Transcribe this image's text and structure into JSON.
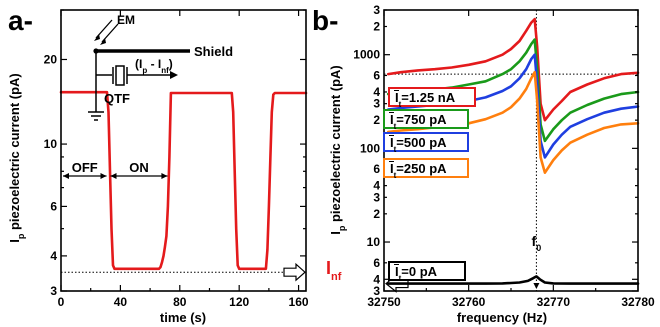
{
  "chart_data": [
    {
      "type": "line",
      "panel_label": "a-",
      "xlabel": "time (s)",
      "ylabel_main": "I",
      "ylabel_sub": "p",
      "ylabel_rest": " piezoelectric current (pA)",
      "xlim": [
        0,
        165
      ],
      "ylim": [
        3.0,
        30
      ],
      "y_scale": "log",
      "x_ticks": [
        0,
        40,
        80,
        120,
        160
      ],
      "x_tick_labels": [
        "0",
        "40",
        "80",
        "120",
        "160"
      ],
      "y_ticks": [
        3,
        4,
        6,
        10,
        20
      ],
      "y_tick_labels": [
        "3",
        "4",
        "6",
        "10",
        "20"
      ],
      "y_minor_ticks": [
        5,
        7,
        8,
        9,
        30
      ],
      "y_minor_tick_labels": [
        "",
        "",
        "",
        "",
        ""
      ],
      "reference_line_y": 3.5,
      "inset": {
        "em_label": "EM",
        "shield_label": "Shield",
        "current_label": "(I",
        "current_sub_p": "p",
        "current_mid": " - I",
        "current_sub_nf": "nf",
        "current_end": ")",
        "qtf_label": "QTF"
      },
      "regions": [
        {
          "label": "OFF",
          "x_start": 0,
          "x_end": 32
        },
        {
          "label": "ON",
          "x_start": 32,
          "x_end": 73
        }
      ],
      "series": [
        {
          "color": "#e41a1c",
          "x": [
            0,
            31,
            32,
            33,
            34,
            35,
            36,
            66,
            67,
            68,
            69,
            70,
            71,
            72,
            73,
            74,
            115,
            116,
            117,
            118,
            119,
            120,
            138,
            139,
            140,
            141,
            142,
            143,
            144,
            165
          ],
          "y": [
            15.3,
            15.3,
            13,
            8,
            5,
            3.7,
            3.6,
            3.6,
            3.65,
            3.8,
            4.0,
            4.3,
            4.7,
            6,
            9,
            15.2,
            15.2,
            13,
            8,
            5,
            3.7,
            3.6,
            3.6,
            4.2,
            6,
            9,
            13,
            15.0,
            15.2,
            15.2
          ]
        }
      ]
    },
    {
      "type": "line",
      "panel_label": "b-",
      "xlabel": "frequency (Hz)",
      "ylabel_main": "I",
      "ylabel_sub": "p",
      "ylabel_rest": " piezoelectric current (pA)",
      "xlim": [
        32750,
        32780
      ],
      "ylim": [
        3.0,
        3000
      ],
      "y_scale": "log",
      "x_ticks": [
        32750,
        32760,
        32770,
        32780
      ],
      "x_tick_labels": [
        "32750",
        "32760",
        "32770",
        "32780"
      ],
      "y_ticks": [
        3,
        4,
        10,
        100,
        1000
      ],
      "y_tick_labels": [
        "3",
        "4",
        "10",
        "100",
        "1000"
      ],
      "y_minor_ticks": [
        6,
        20,
        30,
        40,
        60,
        200,
        300,
        400,
        600,
        2000,
        3000
      ],
      "y_minor_tick_labels": [
        "6",
        "2",
        "3",
        "4",
        "6",
        "2",
        "3",
        "4",
        "6",
        "2",
        "3"
      ],
      "resonance_label": "f",
      "resonance_sub": "0",
      "resonance_x": 32768,
      "reference_line_y": 620,
      "inf_label_main": "I",
      "inf_label_sub": "nf",
      "inf_color": "#e41a1c",
      "series": [
        {
          "name": "Ĩ=1.25 nA",
          "legend_prefix": "I",
          "legend_sub": "t",
          "legend_value": "=1.25 nA",
          "color": "#e41a1c",
          "x": [
            32750.5,
            32752,
            32754,
            32756,
            32758,
            32760,
            32762,
            32764,
            32765,
            32766,
            32766.8,
            32767.4,
            32767.8,
            32768.1,
            32768.5,
            32769,
            32770,
            32771,
            32772,
            32774,
            32776,
            32778,
            32780
          ],
          "y": [
            620,
            650,
            680,
            700,
            730,
            780,
            850,
            1000,
            1150,
            1400,
            1800,
            2200,
            2400,
            1200,
            300,
            200,
            260,
            320,
            400,
            480,
            560,
            620,
            640
          ]
        },
        {
          "name": "Ĩ=750 pA",
          "legend_prefix": "I",
          "legend_sub": "t",
          "legend_value": "=750 pA",
          "color": "#1a9a1a",
          "x": [
            32750.5,
            32752,
            32754,
            32756,
            32758,
            32760,
            32762,
            32764,
            32765,
            32766,
            32766.8,
            32767.4,
            32767.8,
            32768.1,
            32768.5,
            32769,
            32770,
            32771,
            32772,
            32774,
            32776,
            32778,
            32780
          ],
          "y": [
            380,
            395,
            410,
            425,
            445,
            480,
            520,
            620,
            700,
            850,
            1050,
            1300,
            1450,
            700,
            180,
            120,
            160,
            200,
            240,
            290,
            340,
            380,
            400
          ]
        },
        {
          "name": "Ĩ=500 pA",
          "legend_prefix": "I",
          "legend_sub": "t",
          "legend_value": "=500 pA",
          "color": "#1f3fe0",
          "x": [
            32750.5,
            32752,
            32754,
            32756,
            32758,
            32760,
            32762,
            32764,
            32765,
            32766,
            32766.8,
            32767.4,
            32767.8,
            32768.1,
            32768.5,
            32769,
            32770,
            32771,
            32772,
            32774,
            32776,
            32778,
            32780
          ],
          "y": [
            260,
            270,
            280,
            290,
            300,
            320,
            350,
            410,
            460,
            560,
            700,
            900,
            1000,
            480,
            120,
            80,
            110,
            140,
            170,
            205,
            240,
            265,
            280
          ]
        },
        {
          "name": "Ĩ=250 pA",
          "legend_prefix": "I",
          "legend_sub": "t",
          "legend_value": "=250 pA",
          "color": "#ff7f0e",
          "x": [
            32750.5,
            32752,
            32754,
            32756,
            32758,
            32760,
            32762,
            32764,
            32765,
            32766,
            32766.8,
            32767.4,
            32767.8,
            32768.1,
            32768.5,
            32769,
            32770,
            32771,
            32772,
            32774,
            32776,
            32778,
            32780
          ],
          "y": [
            150,
            155,
            160,
            168,
            175,
            185,
            205,
            240,
            275,
            340,
            430,
            560,
            650,
            320,
            80,
            55,
            75,
            95,
            115,
            140,
            165,
            180,
            185
          ]
        },
        {
          "name": "Ĩ=0 pA",
          "legend_prefix": "I",
          "legend_sub": "t",
          "legend_value": "=0 pA",
          "color": "#000000",
          "x": [
            32750.5,
            32754,
            32758,
            32762,
            32764,
            32765,
            32766,
            32767,
            32767.6,
            32768,
            32768.4,
            32769,
            32770,
            32772,
            32776,
            32780
          ],
          "y": [
            3.6,
            3.6,
            3.6,
            3.6,
            3.62,
            3.65,
            3.7,
            3.85,
            4.1,
            4.3,
            4.0,
            3.7,
            3.62,
            3.6,
            3.6,
            3.6
          ]
        }
      ]
    }
  ]
}
